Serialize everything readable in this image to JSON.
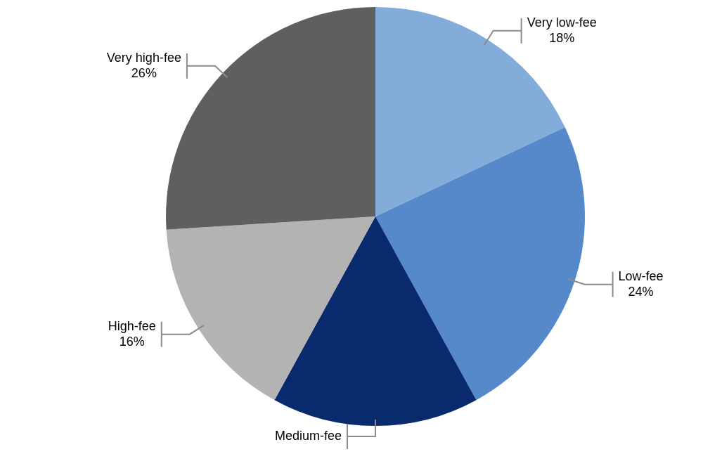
{
  "chart_data": {
    "type": "pie",
    "categories": [
      "Very low-fee",
      "Low-fee",
      "Medium-fee",
      "High-fee",
      "Very high-fee"
    ],
    "values": [
      18,
      24,
      16,
      16,
      26
    ],
    "value_labels": [
      "18%",
      "24%",
      null,
      "16%",
      "26%"
    ],
    "colors": [
      "#84acda",
      "#5589ca",
      "#0a2a6e",
      "#b3b3b3",
      "#5f5f5f"
    ],
    "data_labels": true
  }
}
